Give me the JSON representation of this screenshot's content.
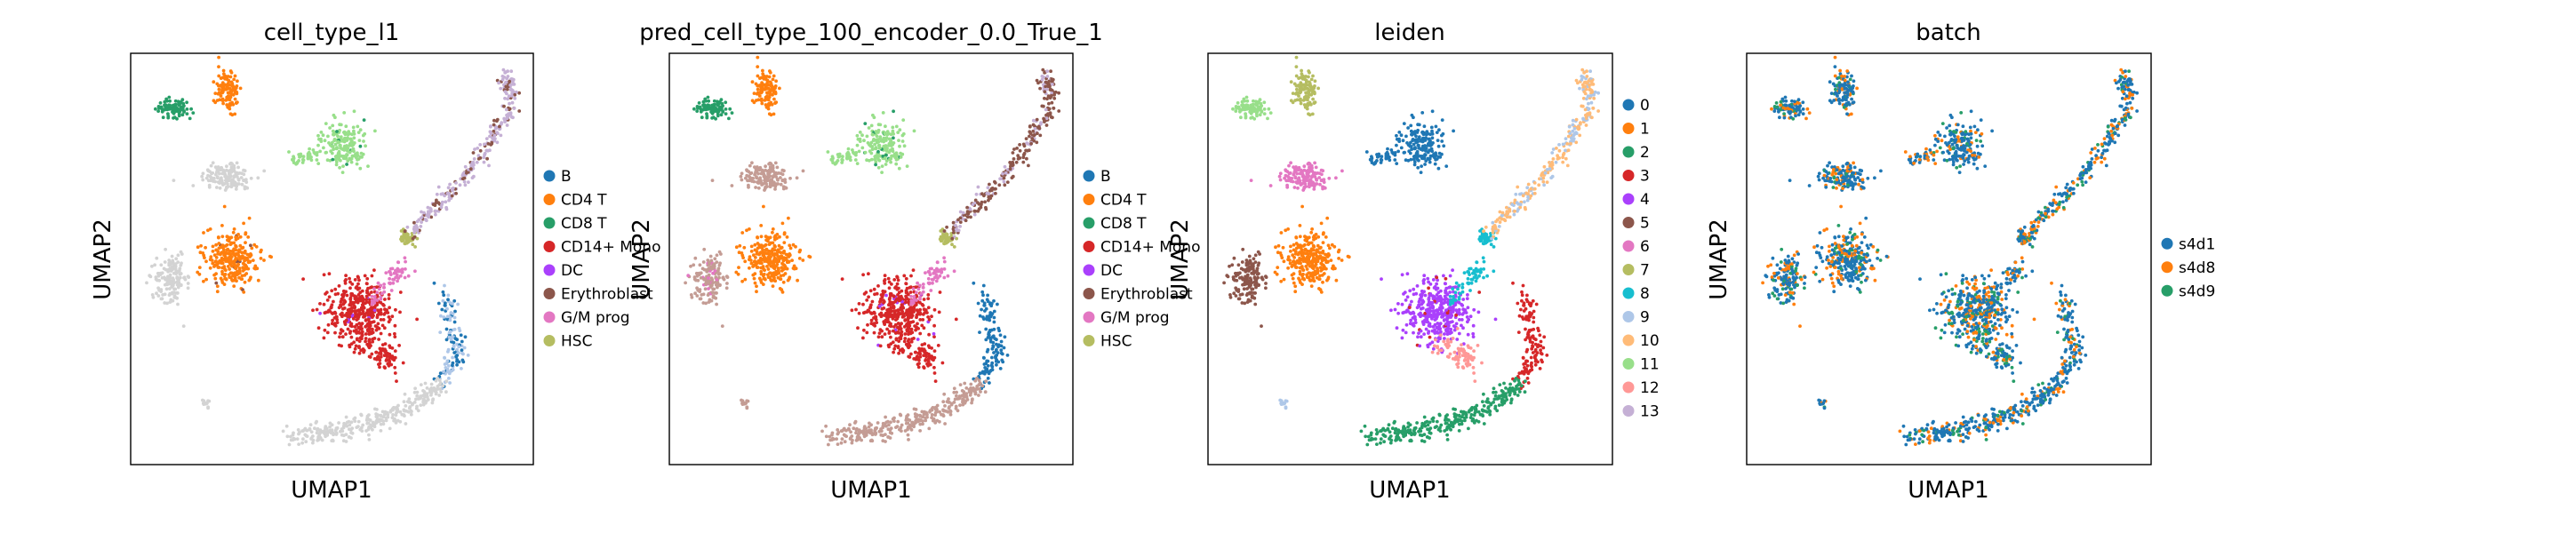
{
  "figure": {
    "background": "#ffffff"
  },
  "chart_data": [
    {
      "type": "scatter",
      "title": "cell_type_l1",
      "xlabel": "UMAP1",
      "ylabel": "UMAP2",
      "legend_placement": "right",
      "color_mode": "celltype",
      "legend": [
        {
          "label": "B",
          "color": "#1f77b4"
        },
        {
          "label": "CD4 T",
          "color": "#ff7f0e"
        },
        {
          "label": "CD8 T",
          "color": "#279e68"
        },
        {
          "label": "CD14+ Mono",
          "color": "#d62728"
        },
        {
          "label": "DC",
          "color": "#aa40fc"
        },
        {
          "label": "Erythroblast",
          "color": "#8c564b"
        },
        {
          "label": "G/M prog",
          "color": "#e377c2"
        },
        {
          "label": "HSC",
          "color": "#b5bd61"
        }
      ]
    },
    {
      "type": "scatter",
      "title": "pred_cell_type_100_encoder_0.0_True_1",
      "xlabel": "UMAP1",
      "ylabel": "UMAP2",
      "legend_placement": "right",
      "color_mode": "pred",
      "legend": [
        {
          "label": "B",
          "color": "#1f77b4"
        },
        {
          "label": "CD4 T",
          "color": "#ff7f0e"
        },
        {
          "label": "CD8 T",
          "color": "#279e68"
        },
        {
          "label": "CD14+ Mono",
          "color": "#d62728"
        },
        {
          "label": "DC",
          "color": "#aa40fc"
        },
        {
          "label": "Erythroblast",
          "color": "#8c564b"
        },
        {
          "label": "G/M prog",
          "color": "#e377c2"
        },
        {
          "label": "HSC",
          "color": "#b5bd61"
        }
      ]
    },
    {
      "type": "scatter",
      "title": "leiden",
      "xlabel": "UMAP1",
      "ylabel": "UMAP2",
      "legend_placement": "right",
      "color_mode": "leiden",
      "legend": [
        {
          "label": "0",
          "color": "#1f77b4"
        },
        {
          "label": "1",
          "color": "#ff7f0e"
        },
        {
          "label": "2",
          "color": "#279e68"
        },
        {
          "label": "3",
          "color": "#d62728"
        },
        {
          "label": "4",
          "color": "#aa40fc"
        },
        {
          "label": "5",
          "color": "#8c564b"
        },
        {
          "label": "6",
          "color": "#e377c2"
        },
        {
          "label": "7",
          "color": "#b5bd61"
        },
        {
          "label": "8",
          "color": "#17becf"
        },
        {
          "label": "9",
          "color": "#aec7e8"
        },
        {
          "label": "10",
          "color": "#ffbb78"
        },
        {
          "label": "11",
          "color": "#98df8a"
        },
        {
          "label": "12",
          "color": "#ff9896"
        },
        {
          "label": "13",
          "color": "#c5b0d5"
        }
      ]
    },
    {
      "type": "scatter",
      "title": "batch",
      "xlabel": "UMAP1",
      "ylabel": "UMAP2",
      "legend_placement": "right",
      "color_mode": "batch",
      "legend": [
        {
          "label": "s4d1",
          "color": "#1f77b4"
        },
        {
          "label": "s4d8",
          "color": "#ff7f0e"
        },
        {
          "label": "s4d9",
          "color": "#279e68"
        }
      ]
    }
  ]
}
